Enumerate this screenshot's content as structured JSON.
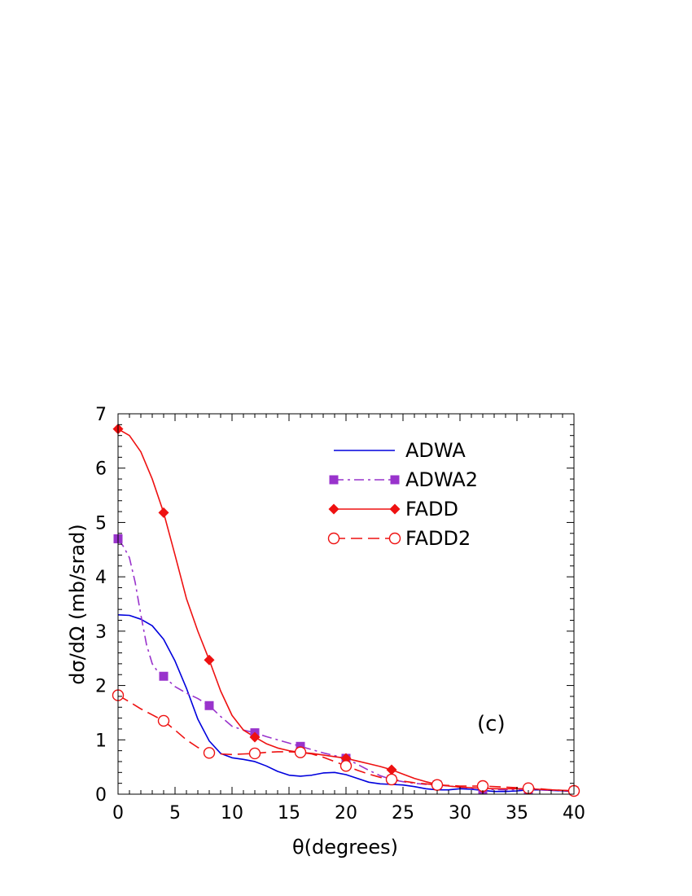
{
  "chart_data": {
    "type": "line",
    "xlabel": "θ(degrees)",
    "ylabel": "dσ/dΩ (mb/srad)",
    "panel_label": "(c)",
    "xlim": [
      0,
      40
    ],
    "ylim": [
      0,
      7
    ],
    "xticks": [
      "0",
      "5",
      "10",
      "15",
      "20",
      "25",
      "30",
      "35",
      "40"
    ],
    "yticks": [
      "0",
      "1",
      "2",
      "3",
      "4",
      "5",
      "6",
      "7"
    ],
    "legend_position": "top-right",
    "grid": false,
    "series": [
      {
        "name": "ADWA",
        "color": "#0000dd",
        "dash": "solid",
        "marker": "none",
        "x": [
          0,
          1,
          2,
          3,
          4,
          5,
          6,
          7,
          8,
          9,
          10,
          11,
          12,
          13,
          14,
          15,
          16,
          17,
          18,
          19,
          20,
          21,
          22,
          23,
          24,
          25,
          26,
          27,
          28,
          29,
          30,
          31,
          32,
          33,
          34,
          35,
          36,
          37,
          38,
          39,
          40
        ],
        "y": [
          3.3,
          3.29,
          3.22,
          3.1,
          2.85,
          2.45,
          1.95,
          1.38,
          0.98,
          0.75,
          0.67,
          0.64,
          0.6,
          0.52,
          0.42,
          0.35,
          0.33,
          0.35,
          0.39,
          0.4,
          0.36,
          0.29,
          0.22,
          0.19,
          0.18,
          0.17,
          0.14,
          0.1,
          0.08,
          0.08,
          0.1,
          0.09,
          0.07,
          0.05,
          0.05,
          0.06,
          0.08,
          0.08,
          0.07,
          0.06,
          0.05
        ]
      },
      {
        "name": "ADWA2",
        "color": "#9933cc",
        "dash": "dashdot",
        "marker": "square",
        "x": [
          0,
          0.5,
          1,
          1.5,
          2,
          2.5,
          3,
          3.5,
          4,
          5,
          6,
          7,
          8,
          9,
          10,
          11,
          12,
          13,
          14,
          15,
          16,
          17,
          18,
          19,
          20,
          21,
          22,
          23,
          24,
          25,
          26,
          27,
          28,
          30,
          32,
          34,
          36,
          38,
          40
        ],
        "y": [
          4.7,
          4.55,
          4.35,
          3.9,
          3.3,
          2.75,
          2.4,
          2.25,
          2.17,
          1.98,
          1.86,
          1.76,
          1.63,
          1.43,
          1.25,
          1.18,
          1.13,
          1.06,
          1.0,
          0.94,
          0.88,
          0.82,
          0.76,
          0.71,
          0.66,
          0.55,
          0.44,
          0.34,
          0.27,
          0.23,
          0.2,
          0.18,
          0.17,
          0.13,
          0.09,
          0.08,
          0.09,
          0.07,
          0.06
        ],
        "markers_x": [
          0,
          4,
          8,
          12,
          16,
          20,
          24,
          28,
          32,
          36,
          40
        ],
        "markers_y": [
          4.7,
          2.17,
          1.63,
          1.13,
          0.88,
          0.66,
          0.27,
          0.17,
          0.09,
          0.09,
          0.06
        ]
      },
      {
        "name": "FADD",
        "color": "#ee1111",
        "dash": "solid",
        "marker": "diamond",
        "x": [
          0,
          1,
          2,
          3,
          4,
          5,
          6,
          7,
          8,
          9,
          10,
          11,
          12,
          13,
          14,
          15,
          16,
          17,
          18,
          19,
          20,
          21,
          22,
          23,
          24,
          25,
          26,
          27,
          28,
          29,
          30,
          31,
          32,
          33,
          34,
          35,
          36,
          37,
          38,
          39,
          40
        ],
        "y": [
          6.72,
          6.6,
          6.3,
          5.8,
          5.18,
          4.4,
          3.6,
          3.0,
          2.47,
          1.9,
          1.45,
          1.18,
          1.05,
          0.93,
          0.85,
          0.8,
          0.77,
          0.75,
          0.72,
          0.69,
          0.66,
          0.61,
          0.56,
          0.51,
          0.45,
          0.37,
          0.29,
          0.23,
          0.18,
          0.15,
          0.13,
          0.12,
          0.11,
          0.1,
          0.1,
          0.1,
          0.1,
          0.09,
          0.08,
          0.07,
          0.06
        ],
        "markers_x": [
          0,
          4,
          8,
          12,
          16,
          20,
          24,
          28,
          32,
          36,
          40
        ],
        "markers_y": [
          6.72,
          5.18,
          2.47,
          1.05,
          0.77,
          0.66,
          0.45,
          0.18,
          0.11,
          0.1,
          0.06
        ]
      },
      {
        "name": "FADD2",
        "color": "#ee1111",
        "dash": "dashed",
        "marker": "circle",
        "x": [
          0,
          1,
          2,
          3,
          4,
          5,
          6,
          7,
          8,
          9,
          10,
          11,
          12,
          13,
          14,
          15,
          16,
          17,
          18,
          19,
          20,
          21,
          22,
          23,
          24,
          25,
          26,
          27,
          28,
          29,
          30,
          31,
          32,
          33,
          34,
          35,
          36,
          37,
          38,
          39,
          40
        ],
        "y": [
          1.82,
          1.7,
          1.57,
          1.46,
          1.35,
          1.18,
          1.0,
          0.86,
          0.76,
          0.74,
          0.73,
          0.74,
          0.75,
          0.77,
          0.78,
          0.78,
          0.77,
          0.74,
          0.68,
          0.6,
          0.52,
          0.44,
          0.37,
          0.31,
          0.27,
          0.24,
          0.21,
          0.19,
          0.17,
          0.16,
          0.15,
          0.15,
          0.15,
          0.14,
          0.13,
          0.12,
          0.11,
          0.1,
          0.08,
          0.07,
          0.06
        ],
        "markers_x": [
          0,
          4,
          8,
          12,
          16,
          20,
          24,
          28,
          32,
          36,
          40
        ],
        "markers_y": [
          1.82,
          1.35,
          0.76,
          0.75,
          0.77,
          0.52,
          0.27,
          0.17,
          0.15,
          0.11,
          0.06
        ]
      }
    ]
  }
}
